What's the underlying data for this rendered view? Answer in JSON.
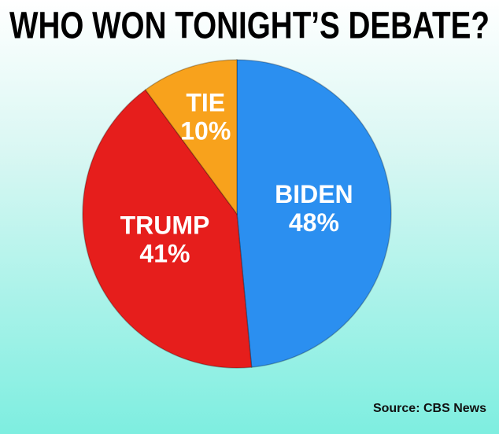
{
  "chart_data": {
    "type": "pie",
    "title": "WHO WON TONIGHT’S DEBATE?",
    "categories": [
      "BIDEN",
      "TRUMP",
      "TIE"
    ],
    "values": [
      48,
      41,
      10
    ],
    "value_labels": [
      "48%",
      "41%",
      "10%"
    ],
    "colors": [
      "#2b8ff0",
      "#e61e1c",
      "#f8a21c"
    ],
    "source": "Source: CBS News"
  }
}
